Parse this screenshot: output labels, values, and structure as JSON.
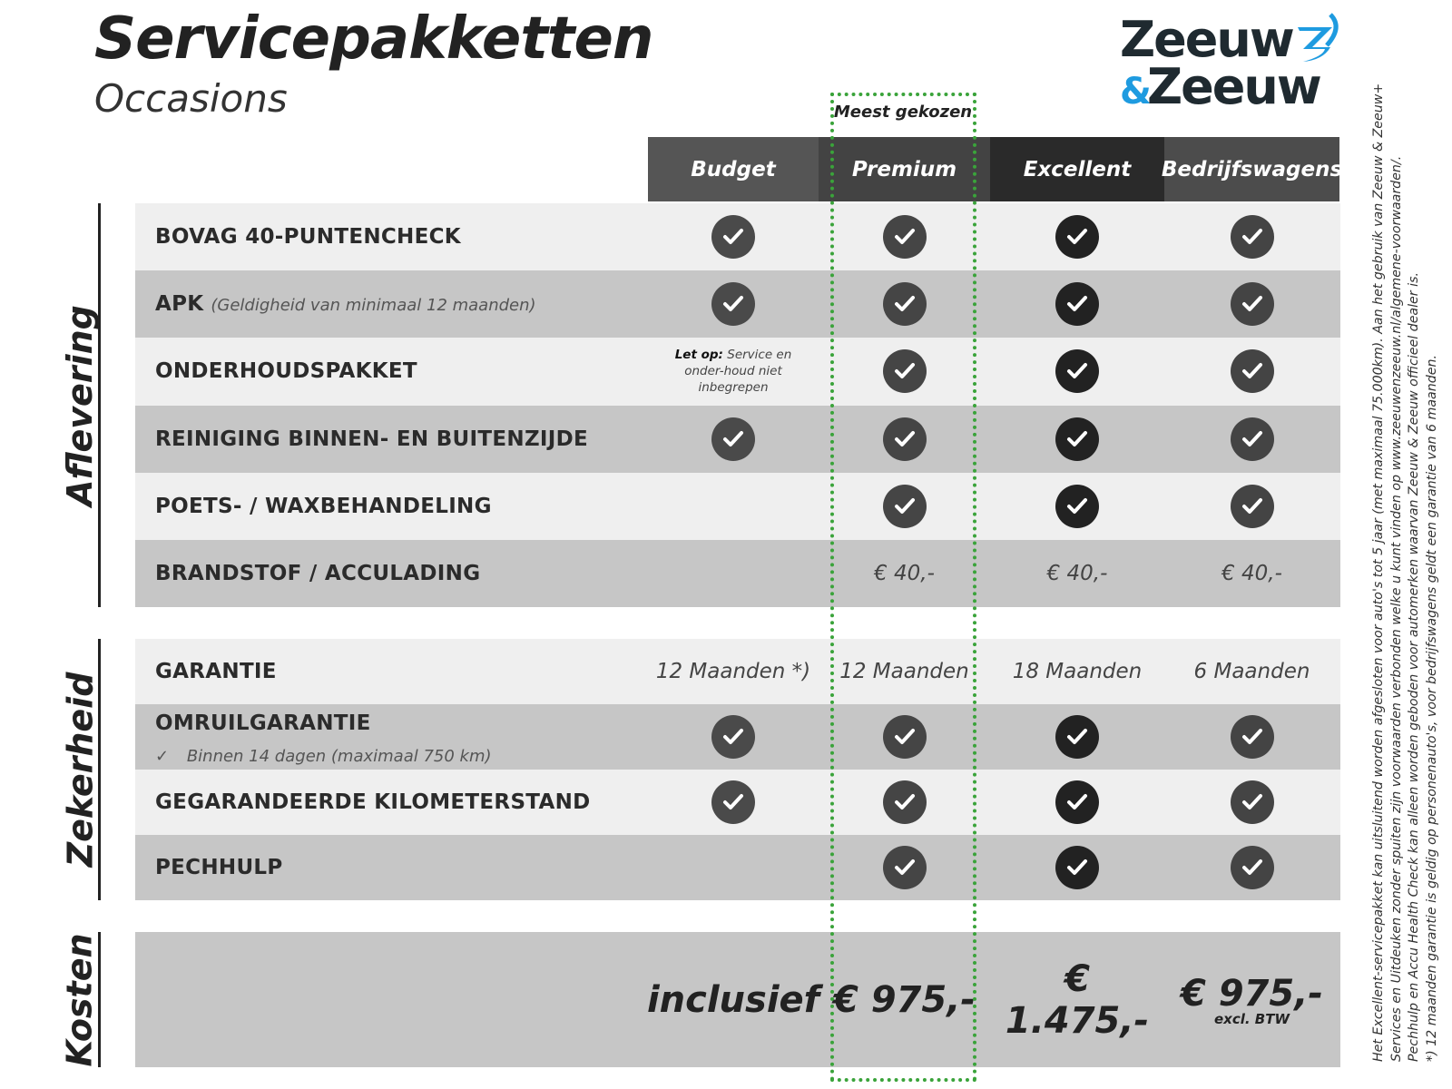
{
  "header": {
    "title": "Servicepakketten",
    "subtitle": "Occasions",
    "logo_text": "Zeeuw & Zeeuw",
    "most_chosen": "Meest gekozen"
  },
  "colors": {
    "highlight": "#3aa33a",
    "logo_blue": "#1e9be0",
    "logo_dark": "#1f2a30"
  },
  "columns": [
    {
      "label": "Budget",
      "bg": "#555555",
      "check": "#4a4a4a"
    },
    {
      "label": "Premium",
      "bg": "#434343",
      "check": "#454545"
    },
    {
      "label": "Excellent",
      "bg": "#2a2a2a",
      "check": "#222222"
    },
    {
      "label": "Bedrijfswagens",
      "bg": "#4c4c4c",
      "check": "#444444"
    }
  ],
  "sections": [
    {
      "label": "Aflevering",
      "rows": [
        {
          "label": "BOVAG 40-PUNTENCHECK",
          "cells": [
            "check",
            "check",
            "check",
            "check"
          ]
        },
        {
          "label": "APK",
          "sub": "(Geldigheid van minimaal 12 maanden)",
          "cells": [
            "check",
            "check",
            "check",
            "check"
          ]
        },
        {
          "label": "ONDERHOUDSPAKKET",
          "cells": [
            "note",
            "check",
            "check",
            "check"
          ],
          "note_bold": "Let op:",
          "note_text": "Service en onder-houd niet inbegrepen"
        },
        {
          "label": "REINIGING BINNEN- EN BUITENZIJDE",
          "cells": [
            "check",
            "check",
            "check",
            "check"
          ]
        },
        {
          "label": "POETS- / WAXBEHANDELING",
          "cells": [
            "",
            "check",
            "check",
            "check"
          ]
        },
        {
          "label": "BRANDSTOF / ACCULADING",
          "cells": [
            "",
            "€ 40,-",
            "€ 40,-",
            "€ 40,-"
          ]
        }
      ]
    },
    {
      "label": "Zekerheid",
      "rows": [
        {
          "label": "GARANTIE",
          "cells": [
            "12 Maanden *)",
            "12 Maanden",
            "18 Maanden",
            "6 Maanden"
          ]
        },
        {
          "label": "OMRUILGARANTIE",
          "sub2": "Binnen 14 dagen (maximaal 750 km)",
          "cells": [
            "check",
            "check",
            "check",
            "check"
          ]
        },
        {
          "label": "GEGARANDEERDE KILOMETERSTAND",
          "cells": [
            "check",
            "check",
            "check",
            "check"
          ]
        },
        {
          "label": "PECHHULP",
          "cells": [
            "",
            "check",
            "check",
            "check"
          ]
        }
      ]
    },
    {
      "label": "Kosten",
      "prices": [
        "inclusief",
        "€ 975,-",
        "€ 1.475,-",
        "€ 975,-"
      ],
      "price_note": "excl. BTW"
    }
  ],
  "footnotes": [
    "Het Excellent-servicepakket kan uitsluitend worden afgesloten voor auto's tot 5 jaar (met maximaal 75.000km). Aan het gebruik van Zeeuw & Zeeuw+",
    "Services en Uitdeuken zonder spuiten zijn voorwaarden verbonden welke u kunt vinden op www.zeeuwenzeeuw.nl/algemene-voorwaarden/.",
    "Pechhulp en Accu Health Check kan alleen worden geboden voor automerken waarvan Zeeuw & Zeeuw officieel dealer is.",
    "*) 12 maanden garantie is geldig op personenauto's, voor bedrijfswagens geldt een garantie van 6 maanden."
  ]
}
